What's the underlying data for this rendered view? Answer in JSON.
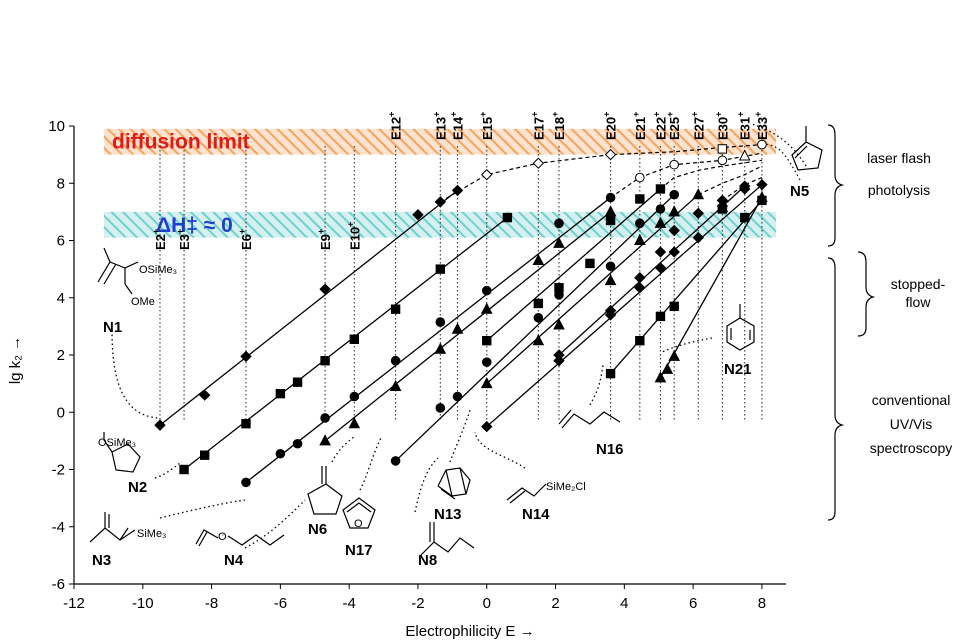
{
  "chart_data": {
    "type": "line",
    "xlabel": "Electrophilicity E →",
    "ylabel": "lg k₂ →",
    "x_ticks": [
      "-12",
      "-10",
      "-8",
      "-6",
      "-4",
      "-2",
      "0",
      "2",
      "4",
      "6",
      "8"
    ],
    "y_ticks": [
      "-6",
      "-4",
      "-2",
      "0",
      "2",
      "4",
      "6",
      "8",
      "10"
    ],
    "xlim": [
      -12,
      9
    ],
    "ylim": [
      -6,
      10
    ],
    "grid": false,
    "bands": [
      {
        "label": "diffusion limit",
        "y_range": [
          9.0,
          9.9
        ],
        "color": "#f4a460"
      },
      {
        "label": "ΔH‡ ≈ 0",
        "y_range": [
          6.1,
          7.0
        ],
        "color": "#5fc8c8"
      }
    ],
    "electrophiles": [
      {
        "label": "E2",
        "sup": "+",
        "E": -9.5
      },
      {
        "label": "E3",
        "sup": "+",
        "E": -8.8
      },
      {
        "label": "E6",
        "sup": "+",
        "E": -7.0
      },
      {
        "label": "E9",
        "sup": "+",
        "E": -4.7
      },
      {
        "label": "E10",
        "sup": "+",
        "E": -3.85
      },
      {
        "label": "E12",
        "sup": "+",
        "E": -2.65
      },
      {
        "label": "E13",
        "sup": "+",
        "E": -1.35
      },
      {
        "label": "E14",
        "sup": "+",
        "E": -0.85
      },
      {
        "label": "E15",
        "sup": "+",
        "E": 0.0
      },
      {
        "label": "E17",
        "sup": "+",
        "E": 1.5
      },
      {
        "label": "E18",
        "sup": "+",
        "E": 2.1
      },
      {
        "label": "E20",
        "sup": "+",
        "E": 3.6
      },
      {
        "label": "E21",
        "sup": "+",
        "E": 4.45
      },
      {
        "label": "E22",
        "sup": "+",
        "E": 5.05
      },
      {
        "label": "E25",
        "sup": "+",
        "E": 5.45
      },
      {
        "label": "E27",
        "sup": "+",
        "E": 6.15
      },
      {
        "label": "E30",
        "sup": "+",
        "E": 6.85
      },
      {
        "label": "E31",
        "sup": "+",
        "E": 7.5
      },
      {
        "label": "E33",
        "sup": "+",
        "E": 8.0
      }
    ],
    "series": [
      {
        "name": "N1",
        "marker": "diamond",
        "points": [
          [
            -9.5,
            -0.45
          ],
          [
            -8.2,
            0.6
          ],
          [
            -7.0,
            1.95
          ],
          [
            -4.7,
            4.3
          ],
          [
            -2.0,
            6.9
          ],
          [
            -1.35,
            7.35
          ],
          [
            -0.85,
            7.75
          ]
        ]
      },
      {
        "name": "N2",
        "marker": "square",
        "points": [
          [
            -8.8,
            -2.0
          ],
          [
            -8.2,
            -1.5
          ],
          [
            -7.0,
            -0.4
          ],
          [
            -6.0,
            0.65
          ],
          [
            -5.5,
            1.05
          ],
          [
            -4.7,
            1.8
          ],
          [
            -3.85,
            2.55
          ],
          [
            -2.65,
            3.6
          ],
          [
            -1.35,
            5.0
          ],
          [
            0.6,
            6.8
          ]
        ]
      },
      {
        "name": "N3",
        "marker": "circle",
        "points": [
          [
            -7.0,
            -2.45
          ],
          [
            -6.0,
            -1.45
          ],
          [
            -5.5,
            -1.1
          ],
          [
            -4.7,
            -0.2
          ],
          [
            -3.85,
            0.55
          ],
          [
            -2.65,
            1.8
          ],
          [
            -1.35,
            3.15
          ],
          [
            0.0,
            4.25
          ],
          [
            2.1,
            6.6
          ],
          [
            3.6,
            7.5
          ]
        ]
      },
      {
        "name": "N4",
        "marker": "triangle",
        "points": [
          [
            -4.7,
            -1.0
          ],
          [
            -3.85,
            -0.4
          ],
          [
            -2.65,
            0.9
          ],
          [
            -1.35,
            2.2
          ],
          [
            -0.85,
            2.9
          ],
          [
            0.0,
            3.6
          ],
          [
            1.5,
            5.3
          ],
          [
            2.1,
            5.9
          ],
          [
            3.6,
            7.0
          ]
        ]
      },
      {
        "name": "N8",
        "marker": "circle",
        "points": [
          [
            -2.65,
            -1.7
          ],
          [
            -1.35,
            0.15
          ],
          [
            -0.85,
            0.55
          ],
          [
            0.0,
            1.75
          ],
          [
            1.5,
            3.3
          ],
          [
            2.1,
            4.1
          ],
          [
            3.6,
            5.1
          ],
          [
            4.45,
            6.6
          ],
          [
            5.05,
            7.1
          ],
          [
            5.45,
            7.6
          ]
        ]
      },
      {
        "name": "N13",
        "marker": "triangle",
        "points": [
          [
            0.0,
            1.0
          ],
          [
            1.5,
            2.5
          ],
          [
            2.1,
            3.05
          ],
          [
            3.6,
            4.6
          ],
          [
            4.45,
            6.0
          ],
          [
            5.05,
            6.6
          ],
          [
            5.45,
            7.0
          ],
          [
            6.15,
            7.6
          ]
        ]
      },
      {
        "name": "N14",
        "marker": "square",
        "points": [
          [
            0.0,
            2.5
          ],
          [
            1.5,
            3.8
          ],
          [
            2.1,
            4.35
          ],
          [
            3.0,
            5.2
          ],
          [
            3.6,
            6.7
          ],
          [
            4.45,
            7.45
          ],
          [
            5.05,
            7.8
          ]
        ]
      },
      {
        "name": "N16",
        "marker": "diamond",
        "points": [
          [
            0.0,
            -0.5
          ],
          [
            2.1,
            1.8
          ],
          [
            3.6,
            3.4
          ],
          [
            4.45,
            4.35
          ],
          [
            5.05,
            5.05
          ],
          [
            5.45,
            5.6
          ],
          [
            6.15,
            6.1
          ],
          [
            6.85,
            7.2
          ],
          [
            7.5,
            7.8
          ],
          [
            8.0,
            7.95
          ]
        ]
      },
      {
        "name": "N17",
        "marker": "diamond",
        "points": [
          [
            2.1,
            2.0
          ],
          [
            3.6,
            3.55
          ],
          [
            4.45,
            4.7
          ],
          [
            5.05,
            5.6
          ],
          [
            5.45,
            6.35
          ],
          [
            6.15,
            6.95
          ],
          [
            6.85,
            7.4
          ],
          [
            7.5,
            7.9
          ]
        ]
      },
      {
        "name": "N6",
        "marker": "square",
        "points": [
          [
            3.6,
            1.35
          ],
          [
            4.45,
            2.5
          ],
          [
            5.05,
            3.35
          ],
          [
            5.45,
            3.7
          ],
          [
            6.85,
            7.1
          ],
          [
            7.5,
            6.8
          ],
          [
            8.0,
            7.4
          ]
        ]
      },
      {
        "name": "N21",
        "marker": "triangle",
        "points": [
          [
            5.05,
            1.2
          ],
          [
            5.25,
            1.5
          ],
          [
            5.45,
            1.95
          ],
          [
            6.85,
            7.15
          ],
          [
            8.0,
            7.5
          ]
        ]
      }
    ],
    "laser_series": [
      {
        "name": "N5",
        "points": [
          [
            0.0,
            8.3
          ],
          [
            1.5,
            8.7
          ],
          [
            3.6,
            9.0
          ],
          [
            4.45,
            8.2
          ],
          [
            5.45,
            8.65
          ],
          [
            6.85,
            8.8
          ],
          [
            6.85,
            9.2
          ],
          [
            7.5,
            8.95
          ],
          [
            8.0,
            9.35
          ]
        ]
      }
    ],
    "dashed_curves": [
      [
        [
          -1.35,
          7.35
        ],
        [
          0.0,
          8.3
        ],
        [
          1.5,
          8.7
        ],
        [
          3.6,
          9.0
        ],
        [
          5.45,
          9.1
        ],
        [
          6.85,
          9.25
        ],
        [
          8.0,
          9.35
        ]
      ],
      [
        [
          3.6,
          7.5
        ],
        [
          4.45,
          8.2
        ],
        [
          5.45,
          8.65
        ],
        [
          6.85,
          8.8
        ],
        [
          8.0,
          9.05
        ]
      ],
      [
        [
          5.05,
          7.8
        ],
        [
          5.45,
          8.2
        ],
        [
          6.15,
          8.45
        ],
        [
          6.85,
          8.6
        ],
        [
          8.0,
          8.8
        ]
      ],
      [
        [
          6.15,
          7.6
        ],
        [
          6.85,
          8.0
        ],
        [
          7.5,
          8.3
        ],
        [
          8.0,
          8.6
        ]
      ],
      [
        [
          6.85,
          7.4
        ],
        [
          7.5,
          7.95
        ],
        [
          8.0,
          8.2
        ]
      ]
    ],
    "method_labels": [
      "laser flash photolysis",
      "stopped-flow",
      "conventional UV/Vis spectroscopy"
    ]
  },
  "nucleophiles": {
    "N1": {
      "label": "N1",
      "formula_top": "OSiMe₃",
      "formula_bottom": "OMe"
    },
    "N2": {
      "label": "N2",
      "formula": "OSiMe₃"
    },
    "N3": {
      "label": "N3",
      "formula": "SiMe₃"
    },
    "N4": {
      "label": "N4"
    },
    "N5": {
      "label": "N5"
    },
    "N6": {
      "label": "N6"
    },
    "N8": {
      "label": "N8"
    },
    "N13": {
      "label": "N13"
    },
    "N14": {
      "label": "N14",
      "formula": "SiMe₂Cl"
    },
    "N16": {
      "label": "N16"
    },
    "N17": {
      "label": "N17",
      "ring_atom": "O"
    },
    "N21": {
      "label": "N21"
    }
  }
}
